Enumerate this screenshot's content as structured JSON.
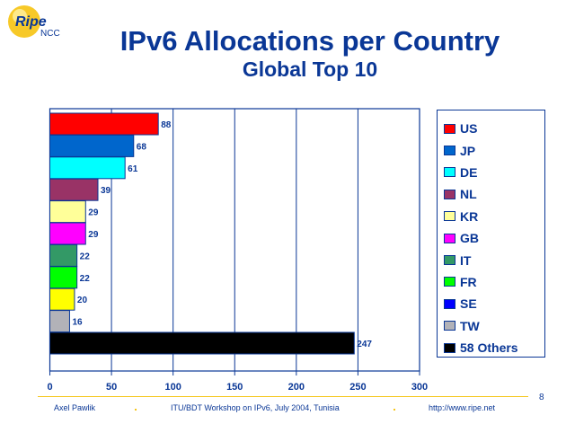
{
  "logo": {
    "text": "Ripe NCC"
  },
  "title": "IPv6 Allocations per Country",
  "subtitle": "Global Top 10",
  "chart_data": {
    "type": "bar",
    "orientation": "horizontal",
    "categories": [
      "US",
      "JP",
      "DE",
      "NL",
      "KR",
      "GB",
      "IT",
      "FR",
      "SE",
      "TW",
      "58 Others"
    ],
    "values": [
      88,
      68,
      61,
      39,
      29,
      29,
      22,
      22,
      20,
      16,
      247
    ],
    "colors": [
      "#ff0000",
      "#0066cc",
      "#00ffff",
      "#993366",
      "#ffff99",
      "#ff00ff",
      "#339966",
      "#00ff00",
      "#ffff00",
      "#b2b2b8",
      "#000000"
    ],
    "legend_colors": [
      "#ff0000",
      "#0066cc",
      "#00ffff",
      "#993366",
      "#ffff99",
      "#ff00ff",
      "#339966",
      "#00ff00",
      "#0000ff",
      "#b2b2b8",
      "#000000"
    ],
    "xlim": [
      0,
      300
    ],
    "xticks": [
      "0",
      "50",
      "100",
      "150",
      "200",
      "250",
      "300"
    ],
    "data_labels": [
      "88",
      "68",
      "61",
      "39",
      "29",
      "29",
      "22",
      "22",
      "20",
      "16",
      "247"
    ],
    "grid": "vertical",
    "legend_position": "right"
  },
  "footer": {
    "author": "Axel Pawlik",
    "event": "ITU/BDT Workshop on IPv6, July 2004, Tunisia",
    "url": "http://www.ripe.net",
    "page": "8"
  }
}
